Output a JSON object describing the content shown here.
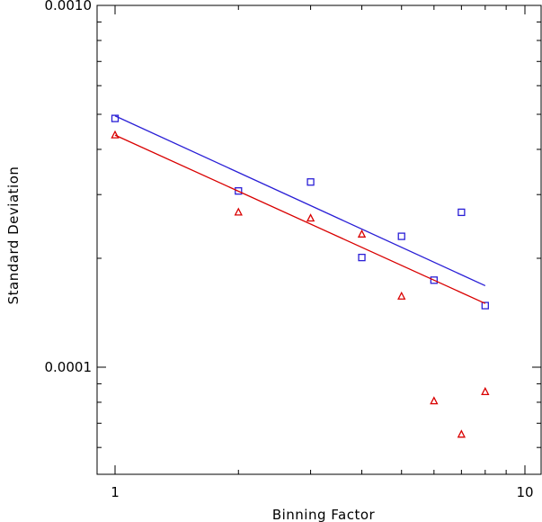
{
  "chart_data": {
    "type": "scatter",
    "title": "",
    "xlabel": "Binning Factor",
    "ylabel": "Standard Deviation",
    "x_scale": "log",
    "y_scale": "log",
    "xlim": [
      1,
      10
    ],
    "ylim": [
      5e-05,
      0.001
    ],
    "grid": false,
    "x_tick_labels": [
      {
        "value": 1,
        "label": "1"
      },
      {
        "value": 10,
        "label": "10"
      }
    ],
    "y_tick_labels": [
      {
        "value": 0.0001,
        "label": "0.0001"
      },
      {
        "value": 0.001,
        "label": "0.0010"
      }
    ],
    "series": [
      {
        "marker": "square",
        "color": "#2a1fd6",
        "x": [
          1,
          2,
          3,
          4,
          5,
          6,
          7,
          8
        ],
        "y": [
          0.000487,
          0.000307,
          0.000325,
          0.000201,
          0.00023,
          0.000174,
          0.000268,
          0.000148
        ],
        "fit": {
          "x": [
            1,
            8
          ],
          "y": [
            0.000495,
            0.000168
          ]
        }
      },
      {
        "marker": "triangle",
        "color": "#d90000",
        "x": [
          1,
          2,
          3,
          4,
          5,
          6,
          7,
          8
        ],
        "y": [
          0.000438,
          0.000268,
          0.000258,
          0.000233,
          0.000157,
          8.06e-05,
          6.52e-05,
          8.55e-05
        ],
        "fit": {
          "x": [
            1,
            8
          ],
          "y": [
            0.000438,
            0.00015
          ]
        }
      }
    ]
  }
}
